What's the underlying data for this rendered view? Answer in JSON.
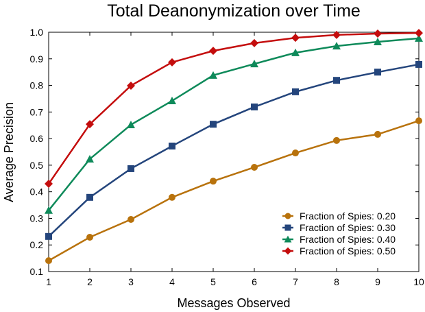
{
  "chart_data": {
    "type": "line",
    "title": "Total Deanonymization over Time",
    "xlabel": "Messages Observed",
    "ylabel": "Average Precision",
    "x": [
      1,
      2,
      3,
      4,
      5,
      6,
      7,
      8,
      9,
      10
    ],
    "xlim": [
      1,
      10
    ],
    "ylim": [
      0.1,
      1.0
    ],
    "xticks": [
      1,
      2,
      3,
      4,
      5,
      6,
      7,
      8,
      9,
      10
    ],
    "yticks": [
      "0.1",
      "0.2",
      "0.3",
      "0.4",
      "0.5",
      "0.6",
      "0.7",
      "0.8",
      "0.9",
      "1.0"
    ],
    "grid": false,
    "legend_placement": "bottom-right",
    "series": [
      {
        "name": "Fraction of Spies: 0.20",
        "color": "#b8720c",
        "marker": "circle",
        "values": [
          0.141,
          0.229,
          0.296,
          0.379,
          0.44,
          0.492,
          0.546,
          0.593,
          0.616,
          0.667
        ]
      },
      {
        "name": "Fraction of Spies: 0.30",
        "color": "#24457c",
        "marker": "square",
        "values": [
          0.232,
          0.379,
          0.487,
          0.572,
          0.654,
          0.719,
          0.776,
          0.819,
          0.85,
          0.879
        ]
      },
      {
        "name": "Fraction of Spies: 0.40",
        "color": "#0e8a5a",
        "marker": "triangle",
        "values": [
          0.33,
          0.523,
          0.652,
          0.742,
          0.838,
          0.881,
          0.923,
          0.948,
          0.964,
          0.977
        ]
      },
      {
        "name": "Fraction of Spies: 0.50",
        "color": "#c40d0d",
        "marker": "diamond",
        "values": [
          0.43,
          0.654,
          0.799,
          0.887,
          0.93,
          0.959,
          0.979,
          0.99,
          0.995,
          0.997
        ]
      }
    ]
  }
}
